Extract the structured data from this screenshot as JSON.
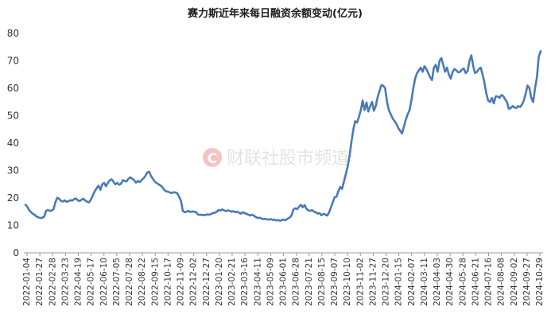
{
  "watermark": {
    "logo_letter": "C",
    "text": "财联社股市频道",
    "logo_color": "#f3c4c4",
    "text_color": "#e0e0e0"
  },
  "chart_data": {
    "type": "line",
    "title": "赛力斯近年来每日融资余额变动(亿元)",
    "xlabel": "",
    "ylabel": "",
    "ylim": [
      0,
      80
    ],
    "yticks": [
      0,
      10,
      20,
      30,
      40,
      50,
      60,
      70,
      80
    ],
    "grid": false,
    "legend": "none",
    "line_color": "#4a7ab8",
    "x_tick_labels": [
      "2022-01-04",
      "2022-01-27",
      "2022-02-28",
      "2022-03-23",
      "2022-04-19",
      "2022-05-17",
      "2022-06-10",
      "2022-07-05",
      "2022-07-28",
      "2022-08-22",
      "2022-09-15",
      "2022-10-17",
      "2022-11-09",
      "2022-12-02",
      "2022-12-27",
      "2023-01-20",
      "2023-02-21",
      "2023-03-16",
      "2023-04-11",
      "2023-05-09",
      "2023-06-01",
      "2023-06-28",
      "2023-07-21",
      "2023-08-15",
      "2023-09-07",
      "2023-10-10",
      "2023-11-02",
      "2023-11-27",
      "2023-12-20",
      "2024-01-15",
      "2024-02-07",
      "2024-03-11",
      "2024-04-03",
      "2024-04-30",
      "2024-05-28",
      "2024-06-21",
      "2024-07-16",
      "2024-08-08",
      "2024-09-02",
      "2024-09-27",
      "2024-10-29"
    ],
    "series": [
      {
        "values": [
          17.5,
          16.8,
          15.5,
          14.8,
          14.2,
          13.8,
          13.2,
          12.9,
          12.7,
          12.8,
          13.2,
          15.3,
          15.6,
          15.3,
          15.4,
          15.9,
          18.5,
          20.1,
          19.7,
          18.9,
          18.7,
          19.1,
          18.6,
          18.8,
          19.2,
          19.0,
          19.6,
          19.8,
          19.1,
          18.9,
          19.4,
          19.7,
          19.0,
          18.6,
          18.4,
          19.5,
          21.0,
          22.5,
          23.5,
          24.5,
          23.0,
          25.0,
          25.5,
          24.3,
          25.5,
          26.4,
          26.8,
          25.9,
          25.0,
          25.5,
          24.8,
          25.2,
          26.5,
          26.2,
          26.0,
          27.0,
          27.5,
          27.0,
          26.5,
          25.6,
          26.2,
          25.8,
          26.5,
          27.2,
          28.0,
          29.3,
          29.6,
          28.0,
          27.0,
          26.0,
          25.5,
          25.0,
          24.6,
          24.0,
          23.0,
          22.5,
          22.3,
          22.0,
          21.8,
          22.1,
          22.0,
          21.7,
          20.5,
          19.0,
          15.3,
          14.8,
          15.0,
          15.3,
          14.9,
          15.1,
          15.0,
          14.9,
          14.0,
          13.8,
          13.9,
          13.7,
          13.8,
          14.0,
          13.9,
          14.1,
          14.5,
          14.6,
          14.9,
          15.6,
          15.4,
          15.8,
          15.5,
          15.2,
          15.5,
          15.3,
          15.0,
          15.2,
          14.8,
          15.0,
          14.6,
          14.3,
          14.8,
          14.5,
          14.2,
          13.9,
          13.6,
          13.9,
          13.5,
          13.0,
          12.7,
          12.8,
          12.5,
          12.3,
          12.4,
          12.2,
          12.1,
          12.3,
          12.0,
          12.1,
          11.8,
          11.9,
          11.7,
          12.0,
          12.1,
          11.9,
          12.5,
          12.8,
          13.6,
          15.8,
          16.2,
          15.9,
          16.8,
          17.5,
          16.6,
          17.4,
          16.0,
          15.5,
          15.3,
          15.6,
          15.0,
          14.8,
          14.3,
          14.5,
          13.7,
          14.2,
          14.0,
          13.6,
          14.6,
          16.5,
          18.3,
          20.2,
          20.5,
          22.4,
          24.0,
          23.3,
          26.0,
          28.6,
          31.5,
          35.5,
          40.5,
          45.0,
          48.0,
          47.5,
          49.5,
          52.0,
          55.5,
          52.0,
          54.8,
          51.5,
          53.5,
          55.0,
          51.8,
          53.5,
          56.8,
          59.0,
          61.2,
          60.9,
          60.0,
          55.0,
          52.0,
          50.5,
          49.0,
          48.0,
          47.0,
          45.5,
          44.5,
          43.5,
          46.0,
          48.5,
          50.5,
          52.0,
          55.5,
          60.0,
          63.5,
          65.5,
          66.5,
          67.5,
          66.0,
          68.0,
          67.0,
          65.5,
          64.0,
          63.0,
          67.5,
          68.5,
          66.0,
          70.0,
          71.0,
          68.5,
          66.0,
          67.5,
          65.0,
          63.5,
          66.0,
          67.0,
          66.5,
          65.8,
          66.0,
          66.8,
          67.2,
          65.5,
          66.2,
          70.0,
          72.0,
          68.0,
          65.5,
          66.0,
          67.0,
          67.5,
          65.0,
          62.0,
          58.0,
          55.5,
          55.0,
          56.5,
          54.5,
          57.0,
          57.0,
          56.5,
          57.5,
          57.2,
          56.0,
          55.0,
          52.5,
          52.8,
          53.5,
          53.0,
          52.8,
          53.5,
          53.2,
          54.0,
          55.5,
          58.0,
          61.0,
          60.0,
          56.5,
          55.0,
          60.0,
          64.0,
          71.5,
          73.5
        ]
      }
    ]
  }
}
